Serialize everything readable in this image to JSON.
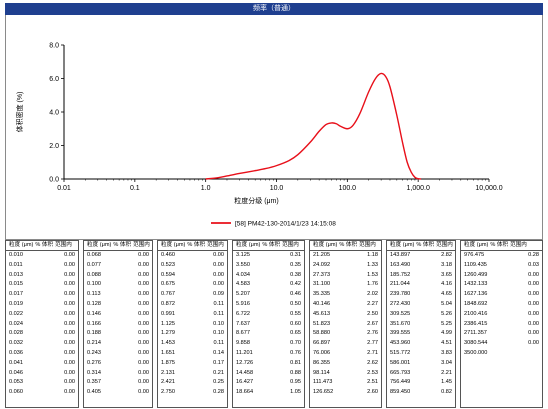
{
  "chart_title": "频率（普通）",
  "chart_data": {
    "type": "line",
    "title": "频率（普通）",
    "xlabel": "粒度分级 (μm)",
    "ylabel": "体积密度 (%)",
    "xscale": "log",
    "xlim": [
      0.01,
      10000
    ],
    "ylim": [
      0,
      8
    ],
    "xticks": [
      "0.01",
      "0.1",
      "1.0",
      "10.0",
      "100.0",
      "1,000.0",
      "10,000.0"
    ],
    "yticks": [
      "0.0",
      "2.0",
      "4.0",
      "6.0",
      "8.0"
    ],
    "series": [
      {
        "name": "[58] PM42-130-2014/1/23 14:15:08",
        "color": "#e8101a",
        "x": [
          1.0,
          1.5,
          2.0,
          3.0,
          5.0,
          7.0,
          10.0,
          15.0,
          20.0,
          30.0,
          40.0,
          50.0,
          60.0,
          70.0,
          80.0,
          100.0,
          120.0,
          150.0,
          200.0,
          250.0,
          300.0,
          350.0,
          400.0,
          500.0,
          600.0,
          700.0,
          800.0,
          900.0,
          1000.0,
          1100.0
        ],
        "y": [
          0.0,
          0.08,
          0.18,
          0.33,
          0.5,
          0.62,
          0.8,
          1.1,
          1.45,
          2.2,
          2.85,
          3.25,
          3.35,
          3.3,
          3.15,
          3.0,
          3.2,
          3.9,
          5.2,
          6.0,
          6.3,
          6.1,
          5.5,
          3.8,
          2.2,
          1.0,
          0.4,
          0.1,
          0.02,
          0.0
        ]
      }
    ],
    "legend": "bottom"
  },
  "table_header": {
    "size": "粒度 (μm)",
    "vol": "% 体积",
    "range": "范围内"
  },
  "tables": [
    [
      [
        "0.010",
        "0.00"
      ],
      [
        "0.011",
        "0.00"
      ],
      [
        "0.013",
        "0.00"
      ],
      [
        "0.015",
        "0.00"
      ],
      [
        "0.017",
        "0.00"
      ],
      [
        "0.019",
        "0.00"
      ],
      [
        "0.022",
        "0.00"
      ],
      [
        "0.024",
        "0.00"
      ],
      [
        "0.028",
        "0.00"
      ],
      [
        "0.032",
        "0.00"
      ],
      [
        "0.036",
        "0.00"
      ],
      [
        "0.041",
        "0.00"
      ],
      [
        "0.046",
        "0.00"
      ],
      [
        "0.053",
        "0.00"
      ],
      [
        "0.060",
        "0.00"
      ]
    ],
    [
      [
        "0.068",
        "0.00"
      ],
      [
        "0.077",
        "0.00"
      ],
      [
        "0.088",
        "0.00"
      ],
      [
        "0.100",
        "0.00"
      ],
      [
        "0.113",
        "0.00"
      ],
      [
        "0.128",
        "0.00"
      ],
      [
        "0.146",
        "0.00"
      ],
      [
        "0.166",
        "0.00"
      ],
      [
        "0.188",
        "0.00"
      ],
      [
        "0.214",
        "0.00"
      ],
      [
        "0.243",
        "0.00"
      ],
      [
        "0.276",
        "0.00"
      ],
      [
        "0.314",
        "0.00"
      ],
      [
        "0.357",
        "0.00"
      ],
      [
        "0.405",
        "0.00"
      ]
    ],
    [
      [
        "0.460",
        "0.00"
      ],
      [
        "0.523",
        "0.00"
      ],
      [
        "0.594",
        "0.00"
      ],
      [
        "0.675",
        "0.00"
      ],
      [
        "0.767",
        "0.09"
      ],
      [
        "0.872",
        "0.11"
      ],
      [
        "0.991",
        "0.11"
      ],
      [
        "1.125",
        "0.10"
      ],
      [
        "1.279",
        "0.10"
      ],
      [
        "1.453",
        "0.11"
      ],
      [
        "1.651",
        "0.14"
      ],
      [
        "1.875",
        "0.17"
      ],
      [
        "2.131",
        "0.21"
      ],
      [
        "2.421",
        "0.25"
      ],
      [
        "2.750",
        "0.28"
      ]
    ],
    [
      [
        "3.125",
        "0.31"
      ],
      [
        "3.550",
        "0.35"
      ],
      [
        "4.034",
        "0.38"
      ],
      [
        "4.583",
        "0.42"
      ],
      [
        "5.207",
        "0.46"
      ],
      [
        "5.916",
        "0.50"
      ],
      [
        "6.722",
        "0.55"
      ],
      [
        "7.637",
        "0.60"
      ],
      [
        "8.677",
        "0.65"
      ],
      [
        "9.858",
        "0.70"
      ],
      [
        "11.201",
        "0.76"
      ],
      [
        "12.726",
        "0.81"
      ],
      [
        "14.458",
        "0.88"
      ],
      [
        "16.427",
        "0.95"
      ],
      [
        "18.664",
        "1.05"
      ]
    ],
    [
      [
        "21.205",
        "1.18"
      ],
      [
        "24.092",
        "1.33"
      ],
      [
        "27.373",
        "1.53"
      ],
      [
        "31.100",
        "1.76"
      ],
      [
        "35.335",
        "2.02"
      ],
      [
        "40.146",
        "2.27"
      ],
      [
        "45.613",
        "2.50"
      ],
      [
        "51.823",
        "2.67"
      ],
      [
        "58.880",
        "2.76"
      ],
      [
        "66.897",
        "2.77"
      ],
      [
        "76.006",
        "2.71"
      ],
      [
        "86.355",
        "2.62"
      ],
      [
        "98.114",
        "2.53"
      ],
      [
        "111.473",
        "2.51"
      ],
      [
        "126.652",
        "2.60"
      ]
    ],
    [
      [
        "143.897",
        "2.82"
      ],
      [
        "163.490",
        "3.18"
      ],
      [
        "185.752",
        "3.65"
      ],
      [
        "211.044",
        "4.16"
      ],
      [
        "239.780",
        "4.65"
      ],
      [
        "272.430",
        "5.04"
      ],
      [
        "309.525",
        "5.26"
      ],
      [
        "351.670",
        "5.25"
      ],
      [
        "399.555",
        "4.99"
      ],
      [
        "453.960",
        "4.51"
      ],
      [
        "515.772",
        "3.83"
      ],
      [
        "586.001",
        "3.04"
      ],
      [
        "665.793",
        "2.21"
      ],
      [
        "756.449",
        "1.45"
      ],
      [
        "859.450",
        "0.82"
      ]
    ],
    [
      [
        "976.475",
        "0.28"
      ],
      [
        "1109.435",
        "0.03"
      ],
      [
        "1260.499",
        "0.00"
      ],
      [
        "1432.133",
        "0.00"
      ],
      [
        "1627.136",
        "0.00"
      ],
      [
        "1848.692",
        "0.00"
      ],
      [
        "2100.416",
        "0.00"
      ],
      [
        "2386.415",
        "0.00"
      ],
      [
        "2711.357",
        "0.00"
      ],
      [
        "3080.544",
        "0.00"
      ],
      [
        "3500.000",
        ""
      ]
    ]
  ]
}
